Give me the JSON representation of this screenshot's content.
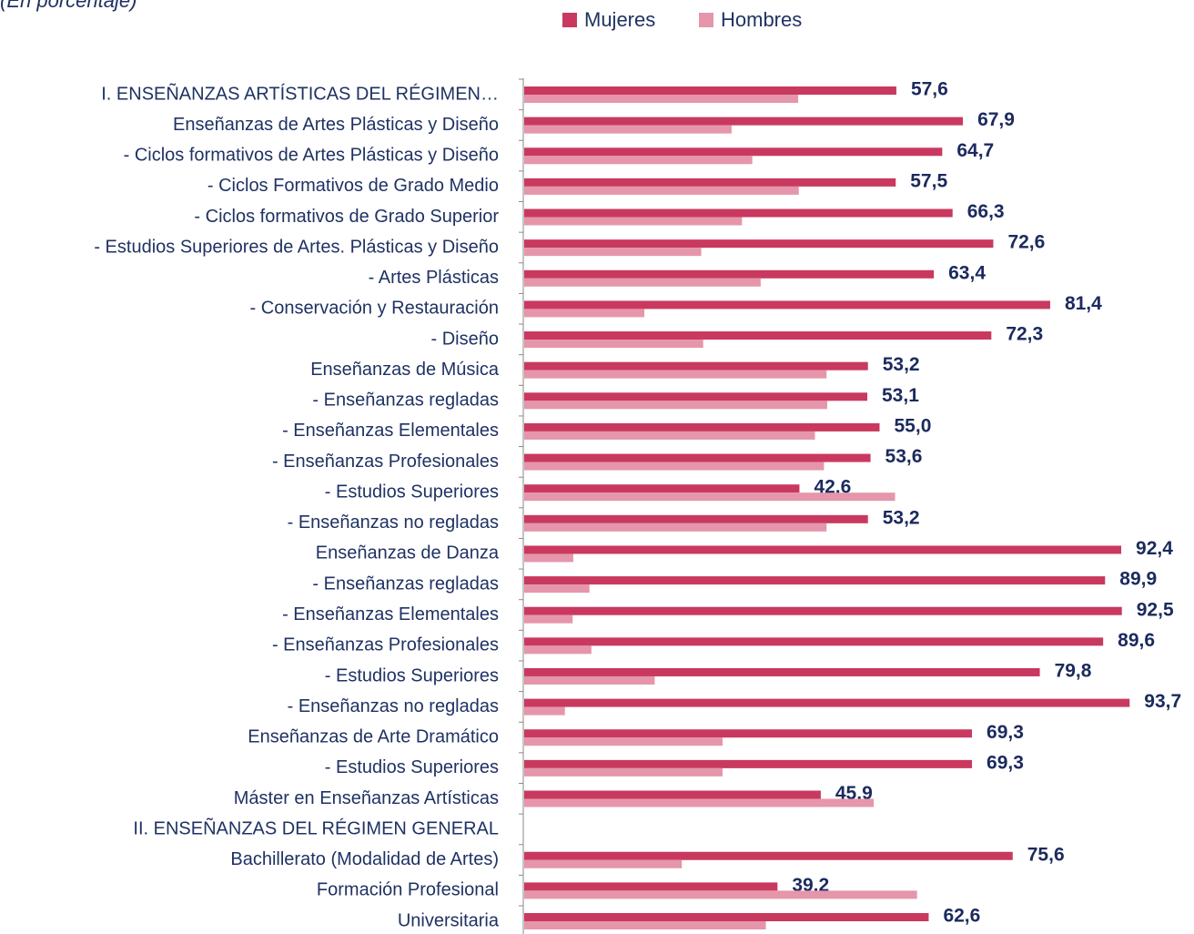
{
  "chart_data": {
    "type": "bar",
    "orientation": "horizontal",
    "subtitle": "(En porcentaje)",
    "categories": [
      "I. ENSEÑANZAS ARTÍSTICAS DEL RÉGIMEN…",
      "Enseñanzas de Artes Plásticas y Diseño",
      "- Ciclos formativos de Artes Plásticas y Diseño",
      "- Ciclos Formativos de Grado Medio",
      "- Ciclos formativos de Grado Superior",
      "- Estudios Superiores de Artes. Plásticas y Diseño",
      "- Artes Plásticas",
      "- Conservación y Restauración",
      "- Diseño",
      "Enseñanzas de Música",
      "- Enseñanzas regladas",
      "- Enseñanzas Elementales",
      "- Enseñanzas Profesionales",
      "- Estudios Superiores",
      "- Enseñanzas no regladas",
      "Enseñanzas de Danza",
      "- Enseñanzas regladas",
      "- Enseñanzas Elementales",
      "- Enseñanzas Profesionales",
      "- Estudios Superiores",
      "- Enseñanzas no regladas",
      "Enseñanzas de Arte Dramático",
      "- Estudios Superiores",
      "Máster en Enseñanzas Artísticas",
      "II. ENSEÑANZAS DEL RÉGIMEN GENERAL",
      "Bachillerato (Modalidad de Artes)",
      "Formación Profesional",
      "Universitaria"
    ],
    "series": [
      {
        "name": "Mujeres",
        "color": "#c9395f",
        "values": [
          57.6,
          67.9,
          64.7,
          57.5,
          66.3,
          72.6,
          63.4,
          81.4,
          72.3,
          53.2,
          53.1,
          55.0,
          53.6,
          42.6,
          53.2,
          92.4,
          89.9,
          92.5,
          89.6,
          79.8,
          93.7,
          69.3,
          69.3,
          45.9,
          null,
          75.6,
          39.2,
          62.6
        ],
        "value_labels": [
          "57,6",
          "67,9",
          "64,7",
          "57,5",
          "66,3",
          "72,6",
          "63,4",
          "81,4",
          "72,3",
          "53,2",
          "53,1",
          "55,0",
          "53,6",
          "42,6",
          "53,2",
          "92,4",
          "89,9",
          "92,5",
          "89,6",
          "79,8",
          "93,7",
          "69,3",
          "69,3",
          "45,9",
          null,
          "75,6",
          "39,2",
          "62,6"
        ]
      },
      {
        "name": "Hombres",
        "color": "#e596ab",
        "values": [
          42.4,
          32.1,
          35.3,
          42.5,
          33.7,
          27.4,
          36.6,
          18.6,
          27.7,
          46.8,
          46.9,
          45.0,
          46.4,
          57.4,
          46.8,
          7.6,
          10.1,
          7.5,
          10.4,
          20.2,
          6.3,
          30.7,
          30.7,
          54.1,
          null,
          24.4,
          60.8,
          37.4
        ]
      }
    ],
    "xlim": [
      0,
      100
    ],
    "legend": "top"
  }
}
